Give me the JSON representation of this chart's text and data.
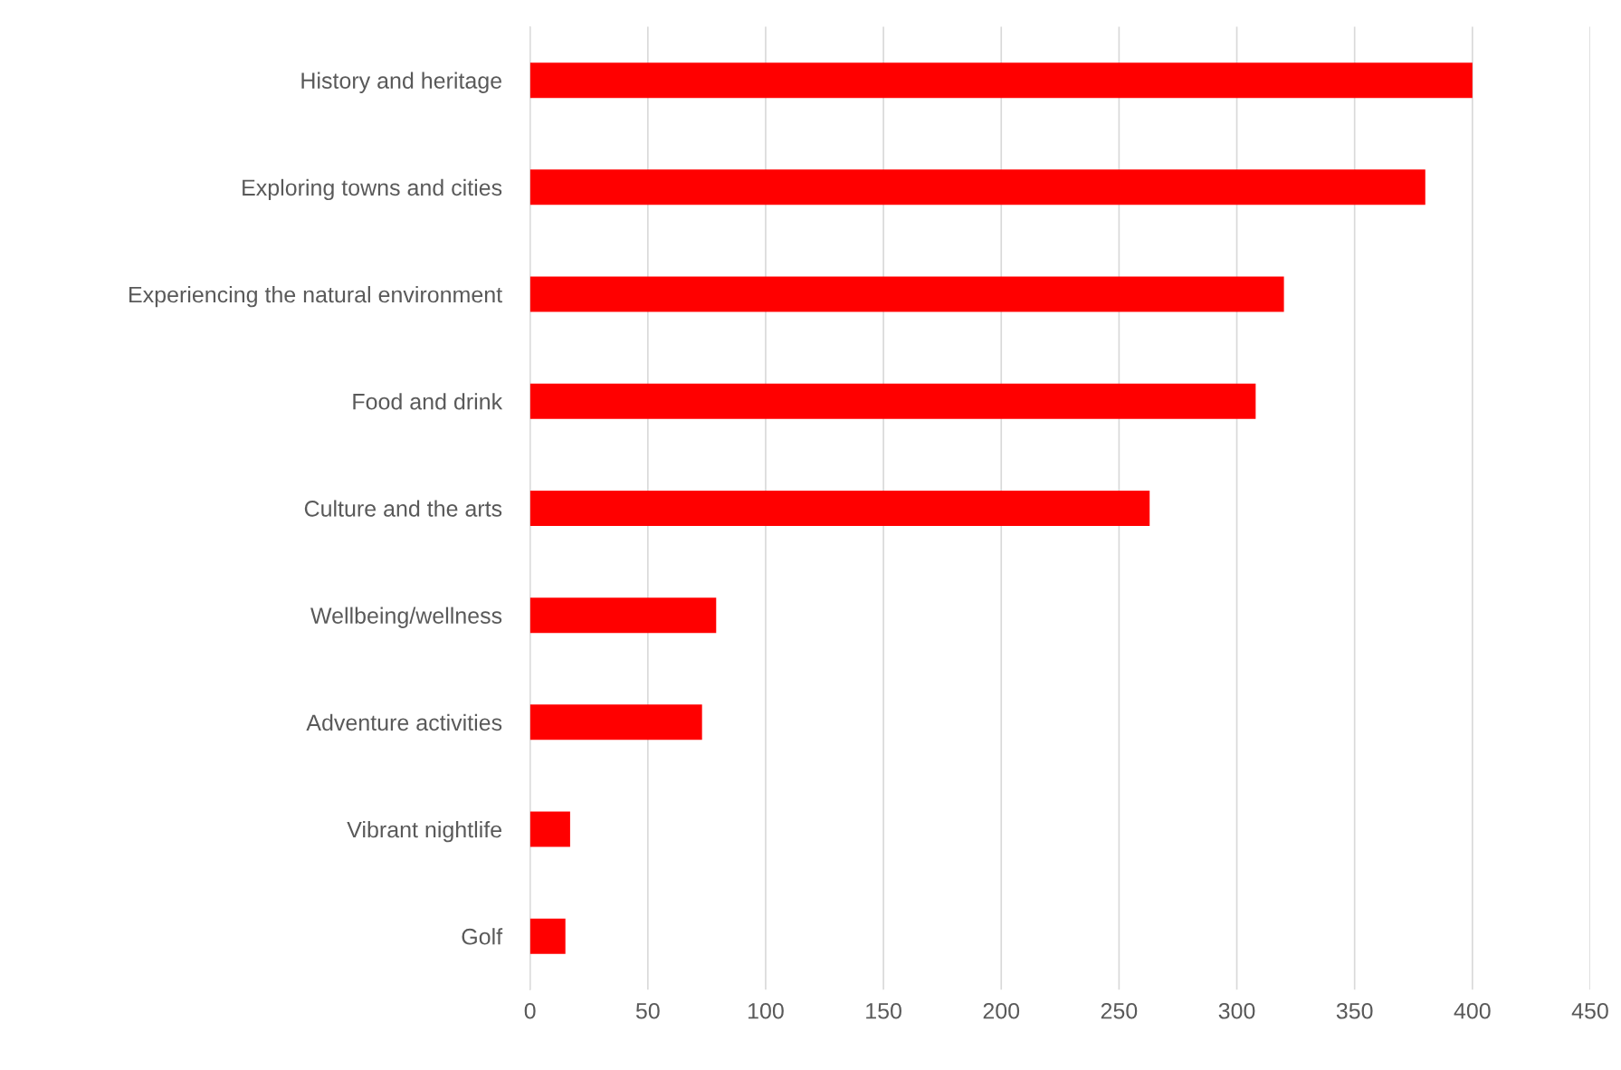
{
  "chart_data": {
    "type": "bar",
    "orientation": "horizontal",
    "categories": [
      "History and heritage",
      "Exploring towns and cities",
      "Experiencing the natural environment",
      "Food and drink",
      "Culture and the arts",
      "Wellbeing/wellness",
      "Adventure activities",
      "Vibrant nightlife",
      "Golf"
    ],
    "values": [
      400,
      380,
      320,
      308,
      263,
      79,
      73,
      17,
      15
    ],
    "color": "#ff0000",
    "xlim": [
      0,
      450
    ],
    "xticks": [
      0,
      50,
      100,
      150,
      200,
      250,
      300,
      350,
      400,
      450
    ],
    "grid": "x"
  }
}
